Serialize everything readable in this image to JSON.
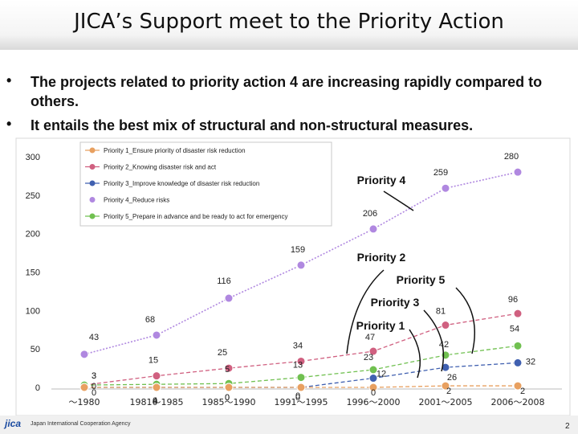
{
  "slide": {
    "title": "JICA’s Support meet to the Priority Action",
    "bullets": [
      {
        "dot": "•",
        "text": "The projects related to priority action 4 are increasing rapidly compared to others."
      },
      {
        "dot": "•",
        "text": " It entails the best mix of structural and non-structural measures."
      }
    ],
    "footer_logo": "jica",
    "footer_agency": "Japan International Cooperation Agency",
    "page_number": "2"
  },
  "colors": {
    "p1": "#e8a060",
    "p2": "#d06080",
    "p3": "#4060b0",
    "p4": "#b088e0",
    "p5": "#70c050"
  },
  "chart_data": {
    "type": "line",
    "categories": [
      "～1980",
      "1981～1985",
      "1985～1990",
      "1991～1995",
      "1996～2000",
      "2001～2005",
      "2006～2008"
    ],
    "ylim": [
      0,
      300
    ],
    "yticks": [
      0,
      50,
      100,
      150,
      200,
      250,
      300
    ],
    "grid": false,
    "legend_position": "top-left",
    "series": [
      {
        "key": "p1",
        "name": "Priority 1_Ensure priority of disaster risk reduction",
        "values": [
          0,
          0,
          0,
          0,
          0,
          2,
          2
        ]
      },
      {
        "key": "p2",
        "name": "Priority 2_Knowing disaster risk and act",
        "values": [
          3,
          15,
          25,
          34,
          47,
          81,
          96
        ]
      },
      {
        "key": "p3",
        "name": "Priority 3_Improve knowledge of disaster risk reduction",
        "values": [
          0,
          0,
          0,
          0,
          12,
          26,
          32
        ]
      },
      {
        "key": "p4",
        "name": "Priority 4_Reduce risks",
        "values": [
          43,
          68,
          116,
          159,
          206,
          259,
          280
        ]
      },
      {
        "key": "p5",
        "name": "Priority 5_Prepare in advance and be ready to act for emergency",
        "values": [
          3,
          4,
          5,
          13,
          23,
          42,
          54
        ]
      }
    ],
    "annotations": [
      "Priority 4",
      "Priority 2",
      "Priority 5",
      "Priority 3",
      "Priority 1"
    ]
  }
}
